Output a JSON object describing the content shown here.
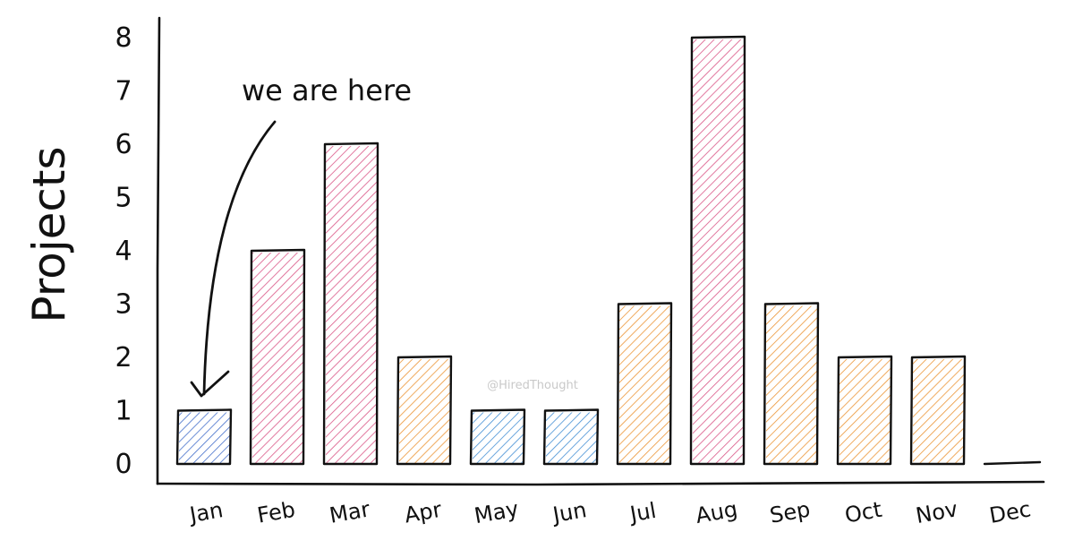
{
  "chart_data": {
    "type": "bar",
    "title": "",
    "xlabel": "",
    "ylabel": "Projects",
    "categories": [
      "Jan",
      "Feb",
      "Mar",
      "Apr",
      "May",
      "Jun",
      "Jul",
      "Aug",
      "Sep",
      "Oct",
      "Nov",
      "Dec"
    ],
    "values": [
      1,
      4,
      6,
      2,
      1,
      1,
      3,
      8,
      3,
      2,
      2,
      0
    ],
    "bar_colors": [
      "#2f5fc4",
      "#d6457a",
      "#d6457a",
      "#ea8a1f",
      "#2f83d0",
      "#2f83d0",
      "#ea8a1f",
      "#d6457a",
      "#ea8a1f",
      "#ea8a1f",
      "#ea8a1f",
      "#ea8a1f"
    ],
    "ylim": [
      0,
      8
    ],
    "yticks": [
      "0",
      "1",
      "2",
      "3",
      "4",
      "5",
      "6",
      "7",
      "8"
    ],
    "grid": false,
    "legend": "none",
    "style": "hand-drawn sketch with diagonal hatching",
    "annotation": {
      "text": "we are here",
      "points_to": "Jan"
    },
    "watermark": "@HiredThought"
  }
}
